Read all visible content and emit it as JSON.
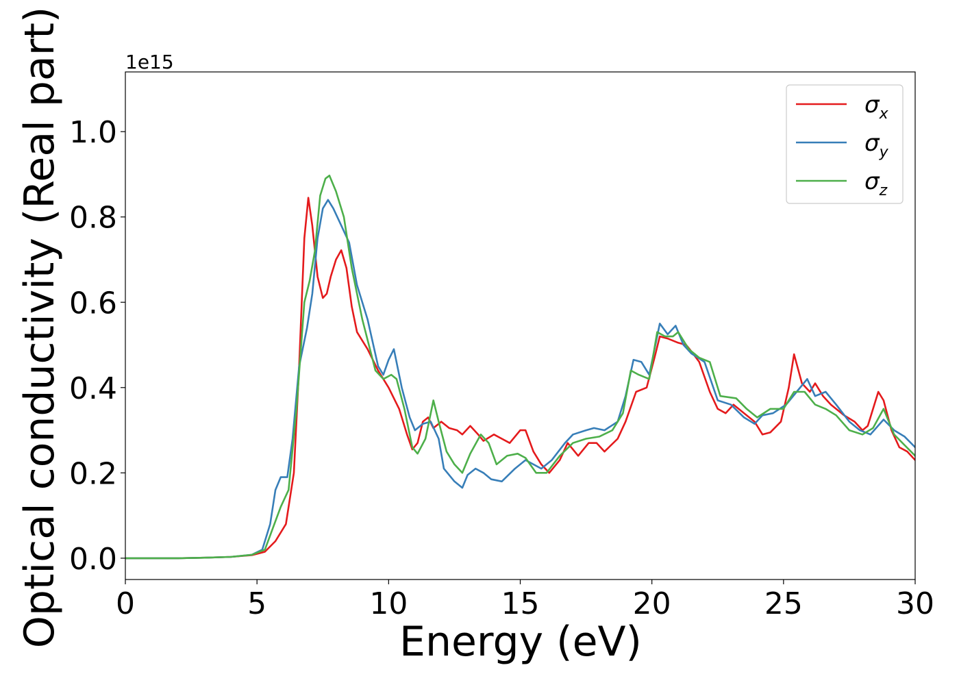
{
  "chart_data": {
    "type": "line",
    "xlabel": "Energy (eV)",
    "ylabel": "Optical conductivity (Real part)",
    "y_offset_text": "1e15",
    "xlim": [
      0,
      30
    ],
    "ylim": [
      -0.05,
      1.14
    ],
    "xticks": [
      0,
      5,
      10,
      15,
      20,
      25,
      30
    ],
    "yticks": [
      0.0,
      0.2,
      0.4,
      0.6,
      0.8,
      1.0
    ],
    "ytick_labels": [
      "0.0",
      "0.2",
      "0.4",
      "0.6",
      "0.8",
      "1.0"
    ],
    "grid": false,
    "legend_position": "top-right",
    "series": [
      {
        "name": "σx",
        "symbol": "σ",
        "subscript": "x",
        "color": "#e41a1c",
        "points": [
          [
            0,
            0.0
          ],
          [
            2,
            0.0
          ],
          [
            3,
            0.001
          ],
          [
            4,
            0.003
          ],
          [
            4.8,
            0.007
          ],
          [
            5.3,
            0.015
          ],
          [
            5.7,
            0.04
          ],
          [
            6.1,
            0.08
          ],
          [
            6.4,
            0.2
          ],
          [
            6.6,
            0.45
          ],
          [
            6.8,
            0.75
          ],
          [
            6.95,
            0.845
          ],
          [
            7.1,
            0.78
          ],
          [
            7.3,
            0.66
          ],
          [
            7.5,
            0.61
          ],
          [
            7.65,
            0.62
          ],
          [
            7.8,
            0.66
          ],
          [
            8.0,
            0.7
          ],
          [
            8.2,
            0.722
          ],
          [
            8.4,
            0.68
          ],
          [
            8.6,
            0.59
          ],
          [
            8.8,
            0.53
          ],
          [
            9.2,
            0.49
          ],
          [
            9.6,
            0.44
          ],
          [
            10.0,
            0.4
          ],
          [
            10.4,
            0.35
          ],
          [
            10.7,
            0.29
          ],
          [
            10.9,
            0.255
          ],
          [
            11.1,
            0.27
          ],
          [
            11.3,
            0.32
          ],
          [
            11.5,
            0.33
          ],
          [
            11.7,
            0.305
          ],
          [
            12.0,
            0.32
          ],
          [
            12.3,
            0.305
          ],
          [
            12.6,
            0.3
          ],
          [
            12.8,
            0.29
          ],
          [
            13.1,
            0.31
          ],
          [
            13.4,
            0.29
          ],
          [
            13.6,
            0.275
          ],
          [
            14.0,
            0.29
          ],
          [
            14.3,
            0.28
          ],
          [
            14.6,
            0.27
          ],
          [
            15.0,
            0.3
          ],
          [
            15.2,
            0.3
          ],
          [
            15.5,
            0.25
          ],
          [
            15.8,
            0.22
          ],
          [
            16.1,
            0.2
          ],
          [
            16.5,
            0.23
          ],
          [
            16.8,
            0.27
          ],
          [
            17.2,
            0.24
          ],
          [
            17.6,
            0.27
          ],
          [
            17.9,
            0.27
          ],
          [
            18.2,
            0.25
          ],
          [
            18.7,
            0.28
          ],
          [
            19.0,
            0.32
          ],
          [
            19.4,
            0.39
          ],
          [
            19.8,
            0.4
          ],
          [
            20.1,
            0.47
          ],
          [
            20.3,
            0.52
          ],
          [
            20.6,
            0.515
          ],
          [
            21.0,
            0.505
          ],
          [
            21.3,
            0.5
          ],
          [
            21.5,
            0.485
          ],
          [
            21.8,
            0.46
          ],
          [
            22.2,
            0.39
          ],
          [
            22.5,
            0.35
          ],
          [
            22.8,
            0.34
          ],
          [
            23.1,
            0.36
          ],
          [
            23.5,
            0.34
          ],
          [
            23.9,
            0.32
          ],
          [
            24.2,
            0.29
          ],
          [
            24.5,
            0.295
          ],
          [
            24.9,
            0.32
          ],
          [
            25.2,
            0.4
          ],
          [
            25.4,
            0.478
          ],
          [
            25.7,
            0.41
          ],
          [
            26.0,
            0.39
          ],
          [
            26.2,
            0.41
          ],
          [
            26.5,
            0.38
          ],
          [
            26.8,
            0.36
          ],
          [
            27.3,
            0.335
          ],
          [
            27.7,
            0.32
          ],
          [
            28.0,
            0.3
          ],
          [
            28.2,
            0.31
          ],
          [
            28.6,
            0.39
          ],
          [
            28.8,
            0.37
          ],
          [
            29.1,
            0.3
          ],
          [
            29.4,
            0.26
          ],
          [
            29.7,
            0.25
          ],
          [
            30.0,
            0.23
          ]
        ]
      },
      {
        "name": "σy",
        "symbol": "σ",
        "subscript": "y",
        "color": "#377eb8",
        "points": [
          [
            0,
            0.0
          ],
          [
            2,
            0.0
          ],
          [
            3,
            0.001
          ],
          [
            4,
            0.003
          ],
          [
            4.8,
            0.008
          ],
          [
            5.2,
            0.02
          ],
          [
            5.5,
            0.08
          ],
          [
            5.7,
            0.16
          ],
          [
            5.9,
            0.19
          ],
          [
            6.15,
            0.19
          ],
          [
            6.35,
            0.28
          ],
          [
            6.6,
            0.45
          ],
          [
            6.9,
            0.54
          ],
          [
            7.1,
            0.62
          ],
          [
            7.3,
            0.75
          ],
          [
            7.5,
            0.82
          ],
          [
            7.7,
            0.84
          ],
          [
            7.9,
            0.82
          ],
          [
            8.2,
            0.78
          ],
          [
            8.5,
            0.74
          ],
          [
            8.8,
            0.64
          ],
          [
            9.2,
            0.56
          ],
          [
            9.6,
            0.45
          ],
          [
            9.8,
            0.43
          ],
          [
            10.0,
            0.465
          ],
          [
            10.2,
            0.49
          ],
          [
            10.5,
            0.4
          ],
          [
            10.8,
            0.33
          ],
          [
            11.0,
            0.3
          ],
          [
            11.3,
            0.315
          ],
          [
            11.6,
            0.32
          ],
          [
            11.9,
            0.28
          ],
          [
            12.1,
            0.21
          ],
          [
            12.5,
            0.18
          ],
          [
            12.8,
            0.165
          ],
          [
            13.0,
            0.195
          ],
          [
            13.3,
            0.21
          ],
          [
            13.6,
            0.2
          ],
          [
            13.9,
            0.185
          ],
          [
            14.3,
            0.18
          ],
          [
            14.8,
            0.21
          ],
          [
            15.2,
            0.23
          ],
          [
            15.5,
            0.22
          ],
          [
            15.8,
            0.21
          ],
          [
            16.2,
            0.23
          ],
          [
            16.7,
            0.27
          ],
          [
            17.0,
            0.29
          ],
          [
            17.5,
            0.3
          ],
          [
            17.8,
            0.305
          ],
          [
            18.2,
            0.3
          ],
          [
            18.7,
            0.32
          ],
          [
            19.0,
            0.38
          ],
          [
            19.3,
            0.465
          ],
          [
            19.6,
            0.46
          ],
          [
            19.9,
            0.43
          ],
          [
            20.3,
            0.55
          ],
          [
            20.6,
            0.525
          ],
          [
            20.9,
            0.545
          ],
          [
            21.2,
            0.5
          ],
          [
            21.5,
            0.48
          ],
          [
            22.0,
            0.46
          ],
          [
            22.5,
            0.37
          ],
          [
            23.0,
            0.36
          ],
          [
            23.5,
            0.33
          ],
          [
            23.9,
            0.315
          ],
          [
            24.2,
            0.335
          ],
          [
            24.6,
            0.34
          ],
          [
            25.1,
            0.36
          ],
          [
            25.5,
            0.39
          ],
          [
            25.9,
            0.42
          ],
          [
            26.2,
            0.38
          ],
          [
            26.6,
            0.39
          ],
          [
            27.0,
            0.36
          ],
          [
            27.5,
            0.32
          ],
          [
            27.9,
            0.3
          ],
          [
            28.3,
            0.29
          ],
          [
            28.8,
            0.325
          ],
          [
            29.2,
            0.3
          ],
          [
            29.6,
            0.285
          ],
          [
            30.0,
            0.26
          ]
        ]
      },
      {
        "name": "σz",
        "symbol": "σ",
        "subscript": "z",
        "color": "#4daf4a",
        "points": [
          [
            0,
            0.0
          ],
          [
            2,
            0.0
          ],
          [
            3,
            0.001
          ],
          [
            4,
            0.003
          ],
          [
            4.8,
            0.008
          ],
          [
            5.3,
            0.02
          ],
          [
            5.6,
            0.07
          ],
          [
            5.9,
            0.12
          ],
          [
            6.2,
            0.16
          ],
          [
            6.5,
            0.35
          ],
          [
            6.8,
            0.6
          ],
          [
            7.0,
            0.65
          ],
          [
            7.2,
            0.72
          ],
          [
            7.4,
            0.85
          ],
          [
            7.6,
            0.89
          ],
          [
            7.75,
            0.897
          ],
          [
            8.0,
            0.86
          ],
          [
            8.3,
            0.8
          ],
          [
            8.6,
            0.68
          ],
          [
            9.0,
            0.56
          ],
          [
            9.5,
            0.44
          ],
          [
            9.8,
            0.42
          ],
          [
            10.1,
            0.43
          ],
          [
            10.3,
            0.42
          ],
          [
            10.6,
            0.35
          ],
          [
            10.9,
            0.26
          ],
          [
            11.1,
            0.245
          ],
          [
            11.4,
            0.28
          ],
          [
            11.7,
            0.37
          ],
          [
            11.9,
            0.32
          ],
          [
            12.2,
            0.25
          ],
          [
            12.5,
            0.22
          ],
          [
            12.8,
            0.2
          ],
          [
            13.1,
            0.245
          ],
          [
            13.5,
            0.29
          ],
          [
            13.8,
            0.27
          ],
          [
            14.1,
            0.22
          ],
          [
            14.5,
            0.24
          ],
          [
            14.9,
            0.245
          ],
          [
            15.2,
            0.235
          ],
          [
            15.6,
            0.2
          ],
          [
            16.0,
            0.2
          ],
          [
            16.5,
            0.24
          ],
          [
            17.0,
            0.27
          ],
          [
            17.5,
            0.28
          ],
          [
            18.0,
            0.285
          ],
          [
            18.5,
            0.3
          ],
          [
            18.9,
            0.34
          ],
          [
            19.2,
            0.44
          ],
          [
            19.5,
            0.43
          ],
          [
            19.9,
            0.42
          ],
          [
            20.2,
            0.53
          ],
          [
            20.5,
            0.52
          ],
          [
            20.8,
            0.52
          ],
          [
            21.0,
            0.53
          ],
          [
            21.4,
            0.49
          ],
          [
            21.8,
            0.47
          ],
          [
            22.2,
            0.46
          ],
          [
            22.6,
            0.38
          ],
          [
            23.2,
            0.375
          ],
          [
            23.6,
            0.35
          ],
          [
            24.0,
            0.33
          ],
          [
            24.5,
            0.35
          ],
          [
            25.0,
            0.35
          ],
          [
            25.4,
            0.39
          ],
          [
            25.8,
            0.39
          ],
          [
            26.2,
            0.36
          ],
          [
            26.6,
            0.35
          ],
          [
            27.0,
            0.335
          ],
          [
            27.5,
            0.3
          ],
          [
            28.0,
            0.29
          ],
          [
            28.4,
            0.305
          ],
          [
            28.8,
            0.35
          ],
          [
            29.2,
            0.29
          ],
          [
            29.6,
            0.265
          ],
          [
            30.0,
            0.24
          ]
        ]
      }
    ]
  }
}
